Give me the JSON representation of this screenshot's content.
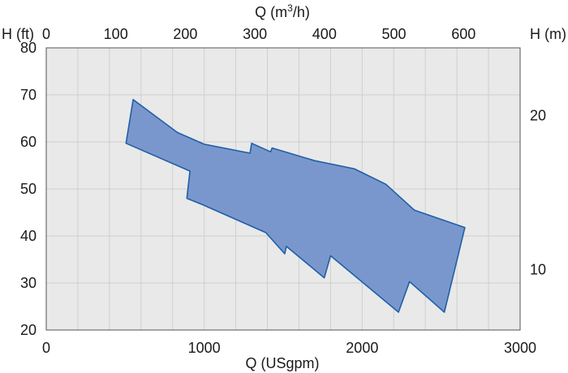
{
  "chart_data": {
    "type": "area",
    "xlabel_bottom": "Q (USgpm)",
    "xlabel_top_prefix": "Q (m",
    "xlabel_top_sup": "3",
    "xlabel_top_suffix": "/h)",
    "ylabel_left": "H (ft)",
    "ylabel_right": "H (m)",
    "x_bottom": {
      "min": 0,
      "max": 3000,
      "ticks": [
        0,
        1000,
        2000,
        3000
      ]
    },
    "x_top": {
      "min": 0,
      "max": 681.4,
      "ticks": [
        0,
        100,
        200,
        300,
        400,
        500,
        600
      ]
    },
    "y_left": {
      "min": 20,
      "max": 80,
      "ticks": [
        20,
        30,
        40,
        50,
        60,
        70,
        80
      ]
    },
    "y_right": {
      "min": 6.096,
      "max": 24.384,
      "ticks": [
        10,
        20
      ]
    },
    "grid": {
      "x_step": 200,
      "y_step": 10
    },
    "colors": {
      "plot_bg": "#e9e9e9",
      "grid": "#cfcfcf",
      "fill": "#7a97cd",
      "stroke": "#1f5fa8",
      "border": "#555555"
    },
    "envelope": [
      [
        505,
        59.7
      ],
      [
        550,
        69.0
      ],
      [
        830,
        62.0
      ],
      [
        1000,
        59.5
      ],
      [
        1290,
        57.6
      ],
      [
        1300,
        59.7
      ],
      [
        1420,
        57.9
      ],
      [
        1430,
        58.7
      ],
      [
        1700,
        56.0
      ],
      [
        1950,
        54.3
      ],
      [
        2150,
        51.0
      ],
      [
        2330,
        45.5
      ],
      [
        2650,
        41.8
      ],
      [
        2520,
        23.8
      ],
      [
        2300,
        30.3
      ],
      [
        2230,
        23.8
      ],
      [
        1800,
        35.8
      ],
      [
        1760,
        31.1
      ],
      [
        1520,
        37.8
      ],
      [
        1510,
        36.2
      ],
      [
        1390,
        40.7
      ],
      [
        1000,
        46.5
      ],
      [
        890,
        48.0
      ],
      [
        910,
        53.8
      ]
    ]
  }
}
